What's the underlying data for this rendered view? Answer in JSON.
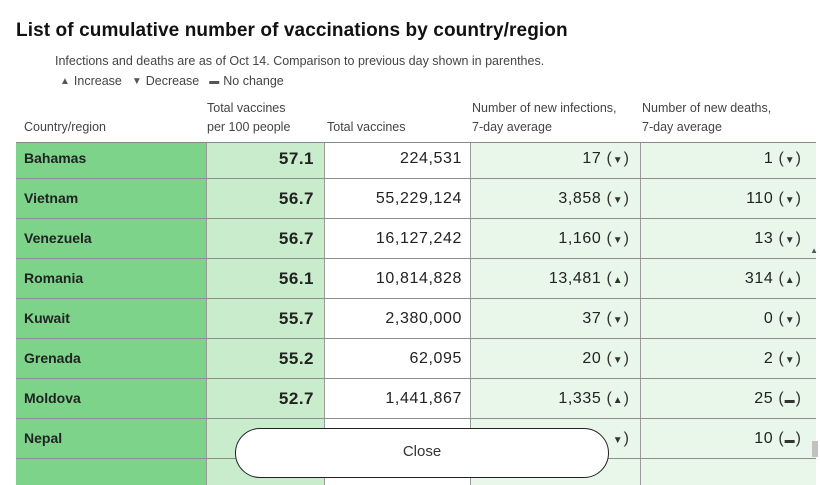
{
  "title": "List of cumulative number of vaccinations by country/region",
  "subtitle": "Infections and deaths are as of Oct 14. Comparison to previous day shown in parenthes.",
  "legend": {
    "increase": "Increase",
    "decrease": "Decrease",
    "no_change": "No change",
    "increase_symbol": "▲",
    "decrease_symbol": "▼",
    "no_change_symbol": "▬"
  },
  "columns": {
    "country": "Country/region",
    "per100_line1": "Total vaccines",
    "per100_line2": "per 100 people",
    "total": "Total vaccines",
    "inf_line1": "Number of new infections,",
    "inf_line2": "7-day average",
    "death_line1": "Number of new deaths,",
    "death_line2": "7-day average"
  },
  "rows": [
    {
      "country": "Bahamas",
      "per100": "57.1",
      "total": "224,531",
      "inf": "17",
      "inf_chg": "▼",
      "death": "1",
      "death_chg": "▼"
    },
    {
      "country": "Vietnam",
      "per100": "56.7",
      "total": "55,229,124",
      "inf": "3,858",
      "inf_chg": "▼",
      "death": "110",
      "death_chg": "▼"
    },
    {
      "country": "Venezuela",
      "per100": "56.7",
      "total": "16,127,242",
      "inf": "1,160",
      "inf_chg": "▼",
      "death": "13",
      "death_chg": "▼"
    },
    {
      "country": "Romania",
      "per100": "56.1",
      "total": "10,814,828",
      "inf": "13,481",
      "inf_chg": "▲",
      "death": "314",
      "death_chg": "▲"
    },
    {
      "country": "Kuwait",
      "per100": "55.7",
      "total": "2,380,000",
      "inf": "37",
      "inf_chg": "▼",
      "death": "0",
      "death_chg": "▼"
    },
    {
      "country": "Grenada",
      "per100": "55.2",
      "total": "62,095",
      "inf": "20",
      "inf_chg": "▼",
      "death": "2",
      "death_chg": "▼"
    },
    {
      "country": "Moldova",
      "per100": "52.7",
      "total": "1,441,867",
      "inf": "1,335",
      "inf_chg": "▲",
      "death": "25",
      "death_chg": "▬"
    },
    {
      "country": "Nepal",
      "per100": "",
      "total": "",
      "inf": "",
      "inf_chg": "▼",
      "death": "10",
      "death_chg": "▬"
    }
  ],
  "close_label": "Close"
}
